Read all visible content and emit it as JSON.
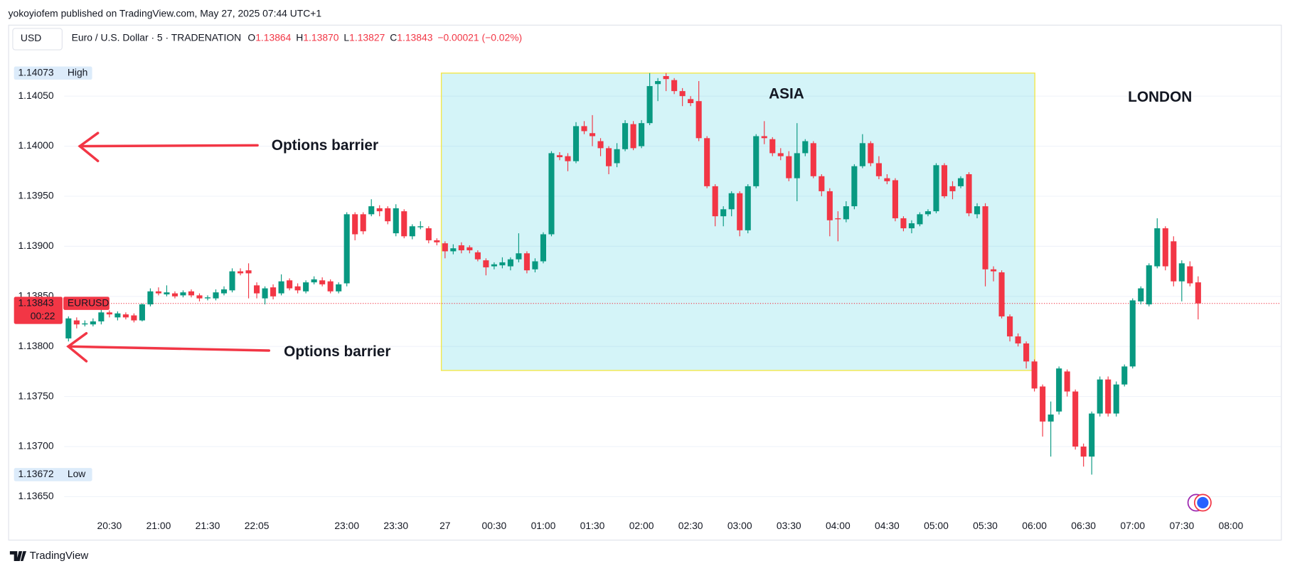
{
  "header": {
    "published": "yokoyiofem published on TradingView.com, May 27, 2025 07:44 UTC+1"
  },
  "footer": {
    "brand": "TradingView"
  },
  "chart_data": {
    "type": "candlestick",
    "currency": "USD",
    "title": "Euro / U.S. Dollar · 5 · TRADENATION",
    "legend_items": [
      {
        "key": "O",
        "value": 1.13864
      },
      {
        "key": "H",
        "value": {
          "value": 1.1387,
          "label": "1.13870"
        }
      },
      {
        "key": "L",
        "value": 1.13827
      },
      {
        "key": "C",
        "value": 1.13843
      }
    ],
    "change": "−0.00021 (−0.02%)",
    "up_color": "#089981",
    "down_color": "#f23645",
    "grid": true,
    "ylim": [
      1.1363,
      1.14095
    ],
    "yticks": [
      {
        "value": 1.1365,
        "label": "1.13650"
      },
      {
        "value": 1.137,
        "label": "1.13700"
      },
      {
        "value": 1.1375,
        "label": "1.13750"
      },
      {
        "value": 1.138,
        "label": "1.13800"
      },
      {
        "value": 1.1385,
        "label": "1.13850"
      },
      {
        "value": 1.139,
        "label": "1.13900"
      },
      {
        "value": 1.1395,
        "label": "1.13950"
      },
      {
        "value": 1.14,
        "label": "1.14000"
      },
      {
        "value": 1.1405,
        "label": "1.14050"
      }
    ],
    "categories": [
      null,
      null,
      null,
      null,
      null,
      "20:30",
      null,
      null,
      null,
      null,
      null,
      "21:00",
      null,
      null,
      null,
      null,
      null,
      "21:30",
      null,
      null,
      null,
      null,
      null,
      "22:05",
      null,
      null,
      null,
      null,
      null,
      null,
      null,
      null,
      null,
      null,
      "23:00",
      null,
      null,
      null,
      null,
      null,
      "23:30",
      null,
      null,
      null,
      null,
      null,
      "27",
      null,
      null,
      null,
      null,
      null,
      "00:30",
      null,
      null,
      null,
      null,
      null,
      "01:00",
      null,
      null,
      null,
      null,
      null,
      "01:30",
      null,
      null,
      null,
      null,
      null,
      "02:00",
      null,
      null,
      null,
      null,
      null,
      "02:30",
      null,
      null,
      null,
      null,
      null,
      "03:00",
      null,
      null,
      null,
      null,
      null,
      "03:30",
      null,
      null,
      null,
      null,
      null,
      "04:00",
      null,
      null,
      null,
      null,
      null,
      "04:30",
      null,
      null,
      null,
      null,
      null,
      "05:00",
      null,
      null,
      null,
      null,
      null,
      "05:30",
      null,
      null,
      null,
      null,
      null,
      "06:00",
      null,
      null,
      null,
      null,
      null,
      "06:30",
      null,
      null,
      null,
      null,
      null,
      "07:00",
      null,
      null,
      null,
      null,
      null,
      "07:30",
      null,
      null,
      null,
      null,
      null,
      "08:00"
    ],
    "open": [
      1.13808,
      1.13826,
      1.13822,
      1.13822,
      1.13825,
      1.13834,
      1.13829,
      1.13832,
      1.13831,
      1.13826,
      1.13842,
      1.13855,
      1.13852,
      1.13853,
      1.13851,
      1.13855,
      1.13851,
      1.13848,
      1.13848,
      1.13853,
      1.13856,
      1.13875,
      1.13876,
      1.13861,
      1.13848,
      1.13859,
      1.13853,
      1.13866,
      1.1386,
      1.13855,
      1.13864,
      1.13866,
      1.13865,
      1.13855,
      1.13863,
      1.13932,
      1.13932,
      1.13932,
      1.13938,
      1.13938,
      1.13913,
      1.13935,
      1.1391,
      1.13919,
      1.13918,
      1.13906,
      1.13903,
      1.13895,
      1.13901,
      1.13899,
      1.13894,
      1.13886,
      1.1388,
      1.13881,
      1.1388,
      1.13887,
      1.13893,
      1.13877,
      1.13885,
      1.13912,
      1.13991,
      1.1399,
      1.13985,
      1.1402,
      1.14013,
      1.14005,
      1.13998,
      1.13983,
      1.13997,
      1.14022,
      1.14,
      1.14023,
      1.14062,
      1.1407,
      1.14066,
      1.14055,
      1.14047,
      1.14045,
      1.14008,
      1.1396,
      1.1393,
      1.13937,
      1.13953,
      1.13916,
      1.1396,
      1.1401,
      1.14007,
      1.13993,
      1.1399,
      1.13968,
      1.13993,
      1.14003,
      1.1397,
      1.13955,
      1.13928,
      1.13927,
      1.1394,
      1.1398,
      1.14003,
      1.13983,
      1.13968,
      1.13966,
      1.13928,
      1.13918,
      1.13922,
      1.13932,
      1.13935,
      1.13981,
      1.1396,
      1.1396,
      1.13972,
      1.13932,
      1.1394,
      1.13877,
      1.13874,
      1.1383,
      1.1381,
      1.13803,
      1.13785,
      1.1376,
      1.13725,
      1.13735,
      1.13775,
      1.13755,
      1.137,
      1.1369,
      1.13733,
      1.13767,
      1.13733,
      1.13762,
      1.1378,
      1.13845,
      1.13842,
      1.1388,
      1.13918,
      1.13905,
      1.13865,
      1.1388,
      1.13864,
      null,
      null,
      null,
      null
    ],
    "high": [
      1.1383,
      1.13829,
      1.13826,
      1.13828,
      1.13837,
      1.13836,
      1.13835,
      1.13834,
      1.13833,
      1.13843,
      1.13858,
      1.13859,
      1.13861,
      1.13855,
      1.13856,
      1.13857,
      1.13853,
      1.13851,
      1.13857,
      1.1386,
      1.13878,
      1.13878,
      1.13883,
      1.13864,
      1.1386,
      1.13862,
      1.13872,
      1.13868,
      1.13863,
      1.13866,
      1.1387,
      1.13869,
      1.13867,
      1.13864,
      1.13934,
      1.13934,
      1.13934,
      1.13947,
      1.13941,
      1.1394,
      1.13942,
      1.13937,
      1.13922,
      1.13925,
      1.1392,
      1.13908,
      1.13905,
      1.13902,
      1.13904,
      1.13901,
      1.13896,
      1.13888,
      1.13884,
      1.13889,
      1.13889,
      1.13913,
      1.13895,
      1.13888,
      1.13914,
      1.13995,
      1.13994,
      1.13993,
      1.14024,
      1.14025,
      1.14031,
      1.14008,
      1.14,
      1.14003,
      1.14026,
      1.14025,
      1.14026,
      1.14073,
      1.14068,
      1.14073,
      1.14068,
      1.14058,
      1.1405,
      1.14065,
      1.1401,
      1.13962,
      1.1394,
      1.13955,
      1.13955,
      1.13962,
      1.14012,
      1.14025,
      1.14009,
      1.13998,
      1.13995,
      1.14023,
      1.14007,
      1.14005,
      1.13972,
      1.13958,
      1.13935,
      1.13945,
      1.13982,
      1.14012,
      1.14005,
      1.1399,
      1.13972,
      1.13968,
      1.1393,
      1.13926,
      1.13934,
      1.13937,
      1.13983,
      1.13983,
      1.13965,
      1.1397,
      1.13974,
      1.13943,
      1.13943,
      1.1388,
      1.13876,
      1.13832,
      1.13813,
      1.13805,
      1.13787,
      1.13762,
      1.13745,
      1.1378,
      1.13777,
      1.13757,
      1.13703,
      1.13735,
      1.1377,
      1.1377,
      1.13765,
      1.13782,
      1.13848,
      1.1386,
      1.13883,
      1.13928,
      1.1392,
      1.1391,
      1.13886,
      1.13885,
      1.1387,
      null,
      null,
      null,
      null
    ],
    "low": [
      1.13805,
      1.13818,
      1.1382,
      1.1382,
      1.13822,
      1.13829,
      1.13826,
      1.13827,
      1.13824,
      1.13825,
      1.1384,
      1.13851,
      1.1385,
      1.13848,
      1.13849,
      1.13849,
      1.13845,
      1.13846,
      1.13846,
      1.13851,
      1.13854,
      1.13871,
      1.13848,
      1.13848,
      1.13842,
      1.13847,
      1.13851,
      1.13856,
      1.13853,
      1.13853,
      1.13862,
      1.1386,
      1.13853,
      1.13853,
      1.1386,
      1.13906,
      1.13912,
      1.1393,
      1.1393,
      1.13922,
      1.1391,
      1.13908,
      1.13907,
      1.13917,
      1.13903,
      1.13901,
      1.13888,
      1.13892,
      1.13893,
      1.13893,
      1.13885,
      1.13871,
      1.13877,
      1.13878,
      1.13876,
      1.13884,
      1.13873,
      1.13874,
      1.13883,
      1.1391,
      1.13986,
      1.13975,
      1.13983,
      1.14012,
      1.14,
      1.1399,
      1.13972,
      1.13979,
      1.13995,
      1.13996,
      1.13998,
      1.14021,
      1.14045,
      1.14055,
      1.14052,
      1.1404,
      1.1404,
      1.14005,
      1.13958,
      1.1392,
      1.1392,
      1.1393,
      1.1391,
      1.13913,
      1.13958,
      1.14002,
      1.1399,
      1.13986,
      1.13965,
      1.13945,
      1.1399,
      1.13968,
      1.1395,
      1.1391,
      1.13905,
      1.13924,
      1.13937,
      1.13978,
      1.1398,
      1.13967,
      1.13962,
      1.13925,
      1.13915,
      1.13913,
      1.1392,
      1.1393,
      1.13933,
      1.13948,
      1.13947,
      1.13958,
      1.1393,
      1.13928,
      1.1386,
      1.13865,
      1.13828,
      1.13805,
      1.138,
      1.13778,
      1.13755,
      1.1371,
      1.1369,
      1.13732,
      1.1375,
      1.13697,
      1.1368,
      1.13672,
      1.1373,
      1.1373,
      1.1373,
      1.1376,
      1.13778,
      1.13842,
      1.1384,
      1.13878,
      1.13876,
      1.1386,
      1.13845,
      1.1386,
      1.13827,
      null,
      null,
      null,
      null
    ],
    "close": [
      1.13828,
      1.13822,
      1.13823,
      1.13825,
      1.13834,
      1.13832,
      1.13833,
      1.13829,
      1.13826,
      1.13842,
      1.13855,
      1.13853,
      1.13854,
      1.1385,
      1.13854,
      1.13851,
      1.13848,
      1.13849,
      1.13854,
      1.13857,
      1.13875,
      1.13873,
      1.13873,
      1.13853,
      1.13858,
      1.1385,
      1.13865,
      1.13858,
      1.13856,
      1.13864,
      1.13867,
      1.13862,
      1.13855,
      1.13862,
      1.13932,
      1.13912,
      1.13915,
      1.1394,
      1.13935,
      1.13925,
      1.13938,
      1.1391,
      1.1392,
      1.1392,
      1.13906,
      1.13904,
      1.13895,
      1.13898,
      1.13896,
      1.13896,
      1.13887,
      1.13879,
      1.13882,
      1.13884,
      1.13887,
      1.13893,
      1.13876,
      1.13885,
      1.13912,
      1.13993,
      1.13989,
      1.13985,
      1.1402,
      1.14015,
      1.1401,
      1.13998,
      1.1398,
      1.13997,
      1.14023,
      1.13998,
      1.14023,
      1.1406,
      1.14065,
      1.14067,
      1.14055,
      1.1405,
      1.14043,
      1.14008,
      1.1396,
      1.1393,
      1.13937,
      1.13953,
      1.13916,
      1.1396,
      1.1401,
      1.14008,
      1.13993,
      1.1399,
      1.13968,
      1.13993,
      1.14005,
      1.1397,
      1.13955,
      1.13926,
      1.13927,
      1.1394,
      1.1398,
      1.14003,
      1.13983,
      1.1397,
      1.13965,
      1.13928,
      1.13918,
      1.13923,
      1.13932,
      1.13935,
      1.13981,
      1.1395,
      1.13955,
      1.13968,
      1.13933,
      1.1394,
      1.13877,
      1.13875,
      1.1383,
      1.1381,
      1.13803,
      1.13785,
      1.13758,
      1.13725,
      1.13732,
      1.13778,
      1.13755,
      1.137,
      1.1369,
      1.13733,
      1.13767,
      1.13733,
      1.13762,
      1.1378,
      1.13846,
      1.13858,
      1.13881,
      1.13918,
      1.1388,
      1.13865,
      1.13883,
      1.13863,
      1.13843,
      null,
      null,
      null,
      null
    ],
    "price_labels": [
      {
        "value": 1.14073,
        "text": "High"
      },
      {
        "value": 1.13672,
        "text": "Low"
      }
    ],
    "current_price": {
      "value": 1.13843,
      "symbol": "EURUSD",
      "countdown": "00:22"
    },
    "barriers": [
      {
        "text": "Options barrier",
        "value": 1.14
      },
      {
        "text": "Options barrier",
        "value": 1.138
      }
    ],
    "sessions": [
      {
        "text": "ASIA",
        "range": [
          1.13776,
          1.14073
        ]
      },
      {
        "text": "LONDON"
      }
    ]
  }
}
